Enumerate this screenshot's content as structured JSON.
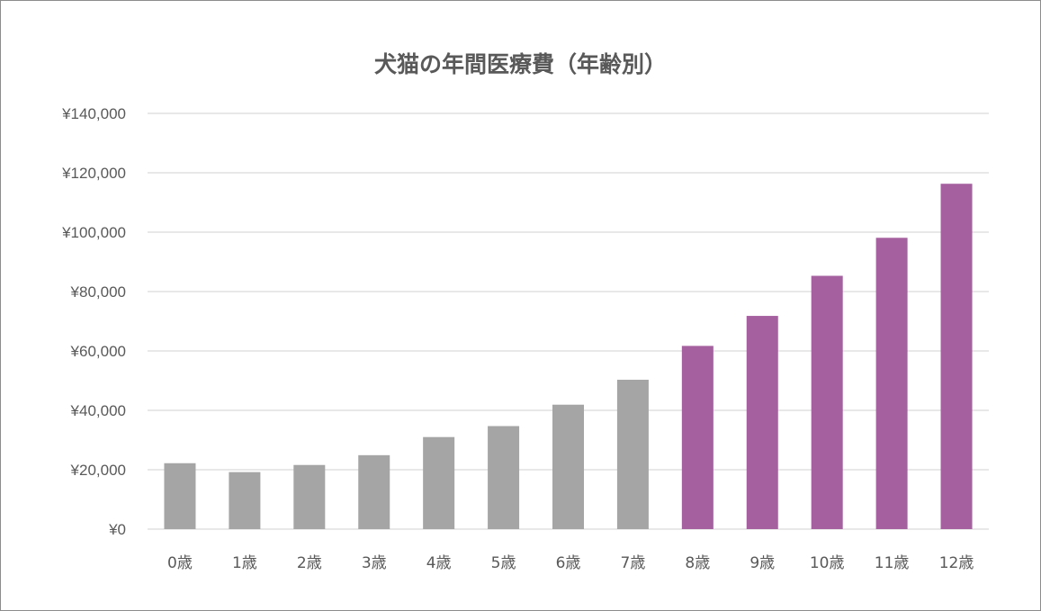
{
  "chart_data": {
    "type": "bar",
    "title": "犬猫の年間医療費（年齢別）",
    "categories": [
      "0歳",
      "1歳",
      "2歳",
      "3歳",
      "4歳",
      "5歳",
      "6歳",
      "7歳",
      "8歳",
      "9歳",
      "10歳",
      "11歳",
      "12歳"
    ],
    "values": [
      22200,
      19200,
      21600,
      24900,
      31000,
      34700,
      41900,
      50300,
      61700,
      71800,
      85300,
      98100,
      116300
    ],
    "bar_colors": [
      "#a5a5a5",
      "#a5a5a5",
      "#a5a5a5",
      "#a5a5a5",
      "#a5a5a5",
      "#a5a5a5",
      "#a5a5a5",
      "#a5a5a5",
      "#a5609f",
      "#a5609f",
      "#a5609f",
      "#a5609f",
      "#a5609f"
    ],
    "ylim": [
      0,
      140000
    ],
    "y_ticks": [
      0,
      20000,
      40000,
      60000,
      80000,
      100000,
      120000,
      140000
    ],
    "y_tick_labels": [
      "¥0",
      "¥20,000",
      "¥40,000",
      "¥60,000",
      "¥80,000",
      "¥100,000",
      "¥120,000",
      "¥140,000"
    ],
    "grid": true,
    "legend": "none",
    "xlabel": "",
    "ylabel": ""
  }
}
